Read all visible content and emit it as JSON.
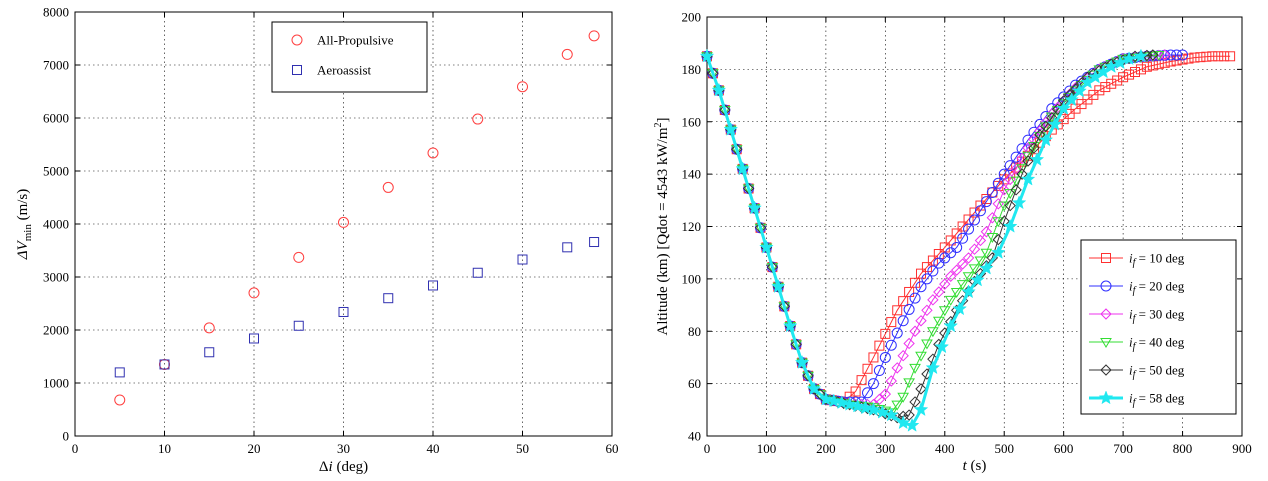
{
  "chart_data": [
    {
      "type": "scatter",
      "title": "",
      "xlabel": "Δi (deg)",
      "ylabel": "ΔV_min (m/s)",
      "xlim": [
        0,
        60
      ],
      "ylim": [
        0,
        8000
      ],
      "xticks": [
        "0",
        "10",
        "20",
        "30",
        "40",
        "50",
        "60"
      ],
      "yticks": [
        "0",
        "1000",
        "2000",
        "3000",
        "4000",
        "5000",
        "6000",
        "7000",
        "8000"
      ],
      "grid": true,
      "legend_position": "top-right",
      "series": [
        {
          "name": "All-Propulsive",
          "marker": "circle",
          "color": "#ff4040",
          "x": [
            5,
            10,
            15,
            20,
            25,
            30,
            35,
            40,
            45,
            50,
            55,
            58
          ],
          "y": [
            680,
            1350,
            2040,
            2700,
            3370,
            4030,
            4690,
            5340,
            5980,
            6590,
            7200,
            7550
          ]
        },
        {
          "name": "Aeroassist",
          "marker": "square",
          "color": "#3030b0",
          "x": [
            5,
            10,
            15,
            20,
            25,
            30,
            35,
            40,
            45,
            50,
            55,
            58
          ],
          "y": [
            1200,
            1350,
            1580,
            1840,
            2080,
            2340,
            2600,
            2840,
            3080,
            3330,
            3560,
            3660
          ]
        }
      ]
    },
    {
      "type": "line",
      "title": "",
      "xlabel": "t (s)",
      "ylabel": "Altitude (km) [Qdot = 4543 kW/m²]",
      "xlim": [
        0,
        900
      ],
      "ylim": [
        40,
        200
      ],
      "xticks": [
        "0",
        "100",
        "200",
        "300",
        "400",
        "500",
        "600",
        "700",
        "800",
        "900"
      ],
      "yticks": [
        "40",
        "60",
        "80",
        "100",
        "120",
        "140",
        "160",
        "180",
        "200"
      ],
      "grid": true,
      "legend_position": "bottom-right",
      "series": [
        {
          "name": "i_f = 10 deg",
          "legend_prefix": "i",
          "legend_sub": "f",
          "legend_suffix": " = 10 deg",
          "marker": "square",
          "color": "#ff3030",
          "stroke_width": 1,
          "points": [
            [
              0,
              185
            ],
            [
              20,
              172
            ],
            [
              40,
              157
            ],
            [
              60,
              142
            ],
            [
              80,
              127
            ],
            [
              100,
              112
            ],
            [
              120,
              97
            ],
            [
              140,
              82
            ],
            [
              160,
              68
            ],
            [
              180,
              58
            ],
            [
              200,
              54
            ],
            [
              230,
              53
            ],
            [
              250,
              57
            ],
            [
              280,
              70
            ],
            [
              320,
              88
            ],
            [
              360,
              102
            ],
            [
              400,
              112
            ],
            [
              430,
              120
            ],
            [
              460,
              128
            ],
            [
              500,
              138
            ],
            [
              540,
              147
            ],
            [
              580,
              157
            ],
            [
              620,
              165
            ],
            [
              660,
              172
            ],
            [
              700,
              177
            ],
            [
              740,
              181
            ],
            [
              780,
              183
            ],
            [
              820,
              184.5
            ],
            [
              850,
              185
            ],
            [
              880,
              185
            ]
          ]
        },
        {
          "name": "i_f = 20 deg",
          "legend_prefix": "i",
          "legend_sub": "f",
          "legend_suffix": " = 20 deg",
          "marker": "circle",
          "color": "#3030ff",
          "stroke_width": 1,
          "points": [
            [
              0,
              185
            ],
            [
              20,
              172
            ],
            [
              40,
              157
            ],
            [
              60,
              142
            ],
            [
              80,
              127
            ],
            [
              100,
              112
            ],
            [
              120,
              97
            ],
            [
              140,
              82
            ],
            [
              160,
              68
            ],
            [
              180,
              58
            ],
            [
              200,
              54
            ],
            [
              230,
              53
            ],
            [
              260,
              53
            ],
            [
              280,
              60
            ],
            [
              300,
              70
            ],
            [
              330,
              84
            ],
            [
              360,
              97
            ],
            [
              390,
              106
            ],
            [
              420,
              112
            ],
            [
              460,
              126
            ],
            [
              500,
              140
            ],
            [
              540,
              153
            ],
            [
              580,
              165
            ],
            [
              620,
              174
            ],
            [
              660,
              180
            ],
            [
              700,
              184
            ],
            [
              740,
              185
            ],
            [
              780,
              185.5
            ],
            [
              800,
              185.5
            ]
          ]
        },
        {
          "name": "i_f = 30 deg",
          "legend_prefix": "i",
          "legend_sub": "f",
          "legend_suffix": " = 30 deg",
          "marker": "diamond",
          "color": "#ee33ee",
          "stroke_width": 1,
          "points": [
            [
              0,
              185
            ],
            [
              20,
              172
            ],
            [
              40,
              157
            ],
            [
              60,
              142
            ],
            [
              80,
              127
            ],
            [
              100,
              112
            ],
            [
              120,
              97
            ],
            [
              140,
              82
            ],
            [
              160,
              68
            ],
            [
              180,
              58
            ],
            [
              200,
              54
            ],
            [
              240,
              52
            ],
            [
              280,
              52
            ],
            [
              300,
              56
            ],
            [
              320,
              66
            ],
            [
              350,
              80
            ],
            [
              380,
              92
            ],
            [
              410,
              101
            ],
            [
              440,
              108
            ],
            [
              470,
              118
            ],
            [
              500,
              134
            ],
            [
              540,
              150
            ],
            [
              580,
              163
            ],
            [
              620,
              173
            ],
            [
              660,
              180
            ],
            [
              700,
              184
            ],
            [
              740,
              185
            ],
            [
              770,
              185.5
            ]
          ]
        },
        {
          "name": "i_f = 40 deg",
          "legend_prefix": "i",
          "legend_sub": "f",
          "legend_suffix": " = 40 deg",
          "marker": "triangle",
          "color": "#33dd33",
          "stroke_width": 1,
          "points": [
            [
              0,
              185
            ],
            [
              20,
              172
            ],
            [
              40,
              157
            ],
            [
              60,
              142
            ],
            [
              80,
              127
            ],
            [
              100,
              112
            ],
            [
              120,
              97
            ],
            [
              140,
              82
            ],
            [
              160,
              68
            ],
            [
              180,
              58
            ],
            [
              200,
              54
            ],
            [
              240,
              52
            ],
            [
              280,
              51
            ],
            [
              310,
              49
            ],
            [
              330,
              55
            ],
            [
              350,
              66
            ],
            [
              380,
              80
            ],
            [
              410,
              92
            ],
            [
              440,
              101
            ],
            [
              470,
              110
            ],
            [
              500,
              128
            ],
            [
              540,
              147
            ],
            [
              580,
              162
            ],
            [
              620,
              172
            ],
            [
              660,
              180
            ],
            [
              700,
              184
            ],
            [
              740,
              185
            ],
            [
              760,
              185.5
            ]
          ]
        },
        {
          "name": "i_f = 50 deg",
          "legend_prefix": "i",
          "legend_sub": "f",
          "legend_suffix": " = 50 deg",
          "marker": "diamond",
          "color": "#333333",
          "stroke_width": 1,
          "points": [
            [
              0,
              185
            ],
            [
              20,
              172
            ],
            [
              40,
              157
            ],
            [
              60,
              142
            ],
            [
              80,
              127
            ],
            [
              100,
              112
            ],
            [
              120,
              97
            ],
            [
              140,
              82
            ],
            [
              160,
              68
            ],
            [
              180,
              58
            ],
            [
              200,
              54
            ],
            [
              240,
              52
            ],
            [
              280,
              50
            ],
            [
              320,
              47
            ],
            [
              340,
              48
            ],
            [
              360,
              58
            ],
            [
              390,
              75
            ],
            [
              420,
              88
            ],
            [
              450,
              99
            ],
            [
              480,
              108
            ],
            [
              500,
              122
            ],
            [
              530,
              140
            ],
            [
              560,
              155
            ],
            [
              600,
              168
            ],
            [
              640,
              177
            ],
            [
              680,
              182
            ],
            [
              720,
              185
            ],
            [
              750,
              185.5
            ]
          ]
        },
        {
          "name": "i_f = 58 deg",
          "legend_prefix": "i",
          "legend_sub": "f",
          "legend_suffix": " = 58 deg",
          "marker": "star",
          "color": "#20e8f0",
          "stroke_width": 3,
          "points": [
            [
              0,
              185
            ],
            [
              20,
              172
            ],
            [
              40,
              157
            ],
            [
              60,
              142
            ],
            [
              80,
              127
            ],
            [
              100,
              112
            ],
            [
              120,
              97
            ],
            [
              140,
              82
            ],
            [
              160,
              68
            ],
            [
              180,
              58
            ],
            [
              200,
              54
            ],
            [
              240,
              52
            ],
            [
              280,
              50
            ],
            [
              310,
              48
            ],
            [
              330,
              45
            ],
            [
              345,
              44
            ],
            [
              360,
              50
            ],
            [
              380,
              66
            ],
            [
              410,
              82
            ],
            [
              440,
              95
            ],
            [
              470,
              104
            ],
            [
              490,
              110
            ],
            [
              510,
              120
            ],
            [
              540,
              138
            ],
            [
              570,
              153
            ],
            [
              600,
              165
            ],
            [
              640,
              175
            ],
            [
              680,
              181
            ],
            [
              710,
              184
            ],
            [
              730,
              185
            ]
          ]
        }
      ]
    }
  ]
}
